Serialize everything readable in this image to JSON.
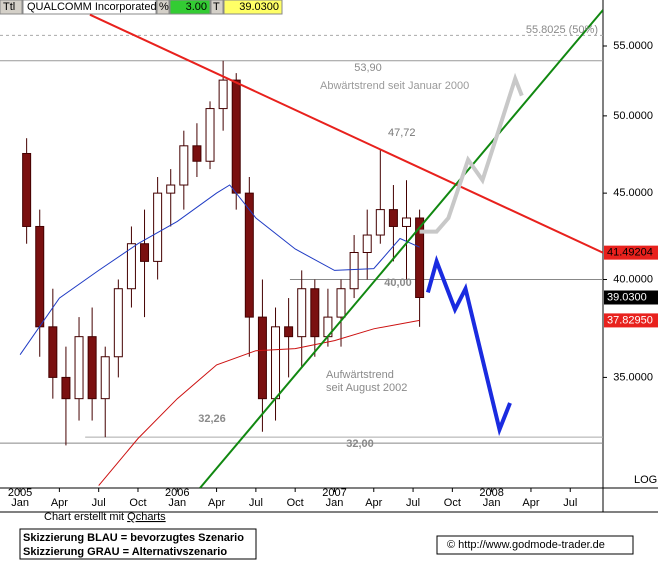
{
  "chart_data": {
    "type": "candlestick",
    "header": {
      "symbol": "Ttl",
      "name": "QUALCOMM Incorporated",
      "pct_label": "%",
      "pct": "3.00",
      "t_label": "T",
      "last": "39.0300"
    },
    "log": true,
    "xlim": [
      "2004-11-15",
      "2008-09-16"
    ],
    "ylim": [
      30.1,
      58.56
    ],
    "xticks": [
      {
        "value": "2005-01",
        "label": "Jan"
      },
      {
        "value": "2005-04",
        "label": "Apr"
      },
      {
        "value": "2005-07",
        "label": "Jul"
      },
      {
        "value": "2005-10",
        "label": "Oct"
      },
      {
        "value": "2006-01",
        "label": "Jan"
      },
      {
        "value": "2006-04",
        "label": "Apr"
      },
      {
        "value": "2006-07",
        "label": "Jul"
      },
      {
        "value": "2006-10",
        "label": "Oct"
      },
      {
        "value": "2007-01",
        "label": "Jan"
      },
      {
        "value": "2007-04",
        "label": "Apr"
      },
      {
        "value": "2007-07",
        "label": "Jul"
      },
      {
        "value": "2007-10",
        "label": "Oct"
      },
      {
        "value": "2008-01",
        "label": "Jan"
      },
      {
        "value": "2008-04",
        "label": "Apr"
      },
      {
        "value": "2008-07",
        "label": "Jul"
      }
    ],
    "year_ticks": [
      {
        "value": "2005-01",
        "label": "2005"
      },
      {
        "value": "2006-01",
        "label": "2006"
      },
      {
        "value": "2007-01",
        "label": "2007"
      },
      {
        "value": "2008-01",
        "label": "2008"
      }
    ],
    "yticks": [
      {
        "value": 35,
        "label": "35.0000"
      },
      {
        "value": 40,
        "label": "40.0000"
      },
      {
        "value": 45,
        "label": "45.0000"
      },
      {
        "value": 50,
        "label": "50.0000"
      },
      {
        "value": 55,
        "label": "55.0000"
      }
    ],
    "x": [
      "2005-01",
      "2005-02",
      "2005-03",
      "2005-04",
      "2005-05",
      "2005-06",
      "2005-07",
      "2005-08",
      "2005-09",
      "2005-10",
      "2005-11",
      "2005-12",
      "2006-01",
      "2006-02",
      "2006-03",
      "2006-04",
      "2006-05",
      "2006-06",
      "2006-07",
      "2006-08",
      "2006-09",
      "2006-10",
      "2006-11",
      "2006-12",
      "2007-01",
      "2007-02",
      "2007-03",
      "2007-04",
      "2007-05",
      "2007-06",
      "2007-07"
    ],
    "open": [
      47.5,
      43,
      37.5,
      35,
      34,
      37,
      34,
      36,
      39.5,
      42,
      41,
      45,
      45.5,
      48,
      47,
      50.5,
      52.5,
      45,
      38,
      34,
      37.5,
      37,
      39.5,
      37,
      38,
      39.5,
      41.5,
      42.5,
      44,
      43,
      43.5
    ],
    "high": [
      48.5,
      44,
      39.5,
      36.5,
      38,
      38.5,
      36.5,
      40,
      43,
      44,
      46,
      46.5,
      49,
      49.5,
      51,
      53.9,
      53,
      46,
      40,
      38.5,
      39,
      40.5,
      40,
      39.5,
      40,
      42.5,
      44,
      47.72,
      45.5,
      45.8,
      44
    ],
    "low": [
      42,
      36,
      34,
      31.9,
      33,
      33,
      32.26,
      35,
      38.5,
      38,
      40,
      43,
      44,
      46,
      46.5,
      49,
      44,
      36,
      32.5,
      33,
      35,
      35.5,
      36,
      36.5,
      36.5,
      39,
      40,
      42,
      41,
      40,
      37.5
    ],
    "close": [
      43,
      37.5,
      35,
      34,
      37,
      34,
      36,
      39.5,
      42,
      41,
      45,
      45.5,
      48,
      47,
      50.5,
      52.5,
      45,
      38,
      34,
      37.5,
      37,
      39.5,
      37,
      38,
      39.5,
      41.5,
      42.5,
      44,
      43,
      43.5,
      39.03
    ],
    "up_color": "#ffffff",
    "down_color": "#7a1010",
    "lines": [
      {
        "color": "#1f3bc4",
        "style": "thin",
        "x": [
          "2005-01",
          "2005-04",
          "2005-07",
          "2005-10",
          "2006-01",
          "2006-04",
          "2006-05",
          "2006-07",
          "2006-10",
          "2007-01",
          "2007-04",
          "2007-06",
          "2007-07-16"
        ],
        "values": [
          36.1,
          39.0,
          40.5,
          42.0,
          43.3,
          45.0,
          45.5,
          43.5,
          41.7,
          40.5,
          40.6,
          42.3,
          41.8
        ]
      },
      {
        "color": "#cc1010",
        "style": "thin",
        "x": [
          "2005-07",
          "2005-10",
          "2006-01",
          "2006-04",
          "2006-07",
          "2006-10",
          "2007-01",
          "2007-04",
          "2007-07-16"
        ],
        "values": [
          30.2,
          32.2,
          34.0,
          35.6,
          36.3,
          36.4,
          36.8,
          37.4,
          37.83
        ]
      },
      {
        "color": "#e8211d",
        "style": "medium",
        "x": [
          "2005-06-11",
          "2008-09-16"
        ],
        "values": [
          57.4,
          41.49
        ]
      },
      {
        "color": "#118811",
        "style": "medium",
        "x": [
          "2006-02-23",
          "2008-09-16"
        ],
        "values": [
          30.1,
          57.77
        ]
      },
      {
        "color": "#c8c8c8",
        "style": "thick",
        "x": [
          "2007-07-16",
          "2007-08-25",
          "2007-09-22",
          "2007-11-07",
          "2007-12-10",
          "2008-01-19",
          "2008-02-25",
          "2008-03-10"
        ],
        "values": [
          42.7,
          42.7,
          43.5,
          47.1,
          45.8,
          49.2,
          52.6,
          51.4
        ]
      },
      {
        "color": "#1a2be0",
        "style": "thick",
        "x": [
          "2007-08-05",
          "2007-08-25",
          "2007-10-07",
          "2007-11-01",
          "2008-01-19",
          "2008-02-13"
        ],
        "values": [
          39.3,
          41.0,
          38.4,
          39.5,
          32.6,
          33.8
        ]
      }
    ],
    "levels": [
      {
        "value": 55.8025,
        "label": "55.8025 (50%)",
        "from": "2004-11-15",
        "color": "#aaaaaa",
        "dashed": true
      },
      {
        "value": 53.9,
        "label": "53,90",
        "from": "2004-11-15",
        "color": "#999999",
        "dashed": false
      },
      {
        "value": 40,
        "label": "40,00",
        "from": "2006-09-19",
        "color": "#888888",
        "dashed": false
      },
      {
        "value": 32.26,
        "label": "32,26",
        "from": "2005-05-30",
        "color": "#aaaaaa",
        "dashed": false
      },
      {
        "value": 32,
        "label": "32,00",
        "from": "2004-11-15",
        "color": "#888888",
        "dashed": false
      }
    ],
    "annotations": [
      {
        "lines": [
          "Abwärtstrend seit Januar 2000"
        ],
        "color": "#9a9a9a"
      },
      {
        "lines": [
          "47,72"
        ],
        "color": "#777777"
      },
      {
        "lines": [
          "Aufwärtstrend",
          "seit August 2002"
        ],
        "color": "#8a8a8a"
      }
    ],
    "price_boxes": [
      {
        "value": 41.49204,
        "label": "41.49204",
        "color": "#e8211d",
        "text_color": "#000000"
      },
      {
        "value": 39.03,
        "label": "39.0300",
        "color": "#000000",
        "text_color": "#ffffff"
      },
      {
        "value": 37.8295,
        "label": "37.82950",
        "color": "#e8211d",
        "text_color": "#ffffff"
      }
    ],
    "footer": {
      "credit": "Chart erstellt mit ",
      "credit_link": "Qcharts",
      "log": "LOG",
      "legend": [
        "Skizzierung BLAU = bevorzugtes Szenario",
        "Skizzierung GRAU = Alternativszenario"
      ],
      "site": "© http://www.godmode-trader.de"
    }
  }
}
